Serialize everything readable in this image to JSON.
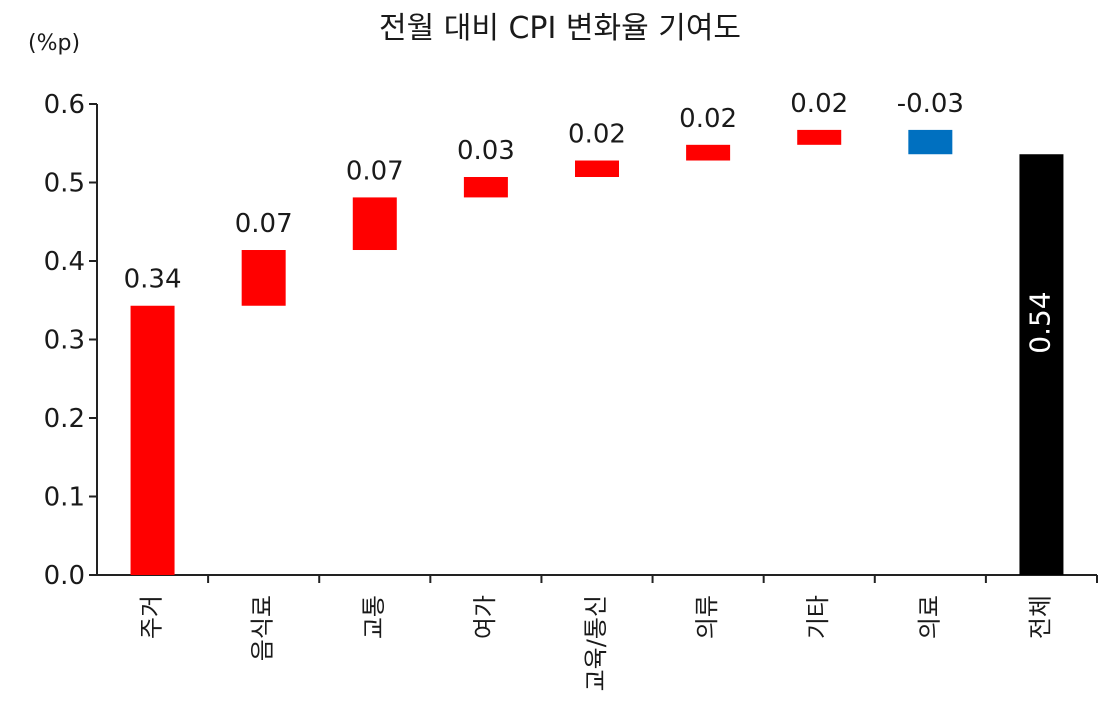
{
  "chart_data": {
    "type": "bar",
    "variant": "waterfall",
    "title": "전월 대비 CPI 변화율 기여도",
    "unit": "(%p)",
    "xlabel": "",
    "ylabel": "",
    "ylim": [
      0.0,
      0.6
    ],
    "yticks": [
      "0.0",
      "0.1",
      "0.2",
      "0.3",
      "0.4",
      "0.5",
      "0.6"
    ],
    "grid": false,
    "categories": [
      "주거",
      "음식료",
      "교통",
      "여가",
      "교육/통신",
      "의류",
      "기타",
      "의료",
      "전체"
    ],
    "bars": [
      {
        "label": "0.34",
        "start": 0.0,
        "end": 0.343,
        "color": "#ff0000"
      },
      {
        "label": "0.07",
        "start": 0.343,
        "end": 0.414,
        "color": "#ff0000"
      },
      {
        "label": "0.07",
        "start": 0.414,
        "end": 0.481,
        "color": "#ff0000"
      },
      {
        "label": "0.03",
        "start": 0.481,
        "end": 0.507,
        "color": "#ff0000"
      },
      {
        "label": "0.02",
        "start": 0.507,
        "end": 0.528,
        "color": "#ff0000"
      },
      {
        "label": "0.02",
        "start": 0.528,
        "end": 0.548,
        "color": "#ff0000"
      },
      {
        "label": "0.02",
        "start": 0.548,
        "end": 0.567,
        "color": "#ff0000"
      },
      {
        "label": "-0.03",
        "start": 0.567,
        "end": 0.536,
        "color": "#0070c0"
      },
      {
        "label": "0.54",
        "start": 0.0,
        "end": 0.536,
        "color": "#000000"
      }
    ]
  }
}
